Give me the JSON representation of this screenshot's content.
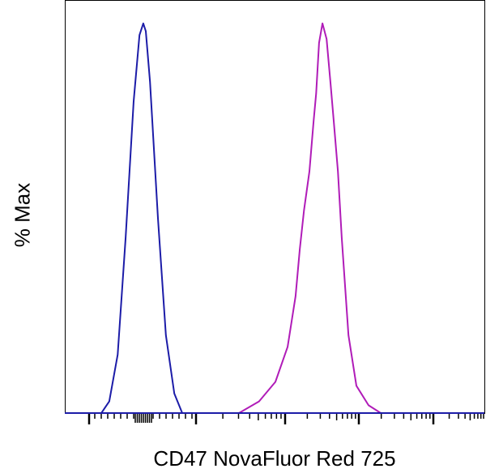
{
  "chart_data": {
    "type": "line",
    "title": "",
    "xlabel": "CD47 NovaFluor Red 725",
    "ylabel": "% Max",
    "x_scale": "biexponential (no tick labels shown)",
    "xlim": [
      0,
      1000
    ],
    "ylim": [
      0,
      106
    ],
    "grid": false,
    "legend": "none",
    "series": [
      {
        "color": "#1c1ca8",
        "x": [
          87,
          106,
          126,
          145,
          164,
          178,
          187,
          193,
          203,
          222,
          241,
          261,
          280
        ],
        "y": [
          0,
          3,
          15,
          45,
          80,
          97,
          100,
          98,
          85,
          50,
          20,
          5,
          0
        ]
      },
      {
        "color": "#b01cb8",
        "x": [
          415,
          463,
          502,
          531,
          550,
          560,
          570,
          583,
          593,
          599,
          606,
          614,
          624,
          633,
          641,
          651,
          660,
          676,
          695,
          724,
          753
        ],
        "y": [
          0,
          3,
          8,
          17,
          30,
          42,
          52,
          62,
          75,
          82,
          95,
          100,
          96,
          85,
          75,
          62,
          45,
          20,
          7,
          2,
          0
        ]
      }
    ]
  }
}
